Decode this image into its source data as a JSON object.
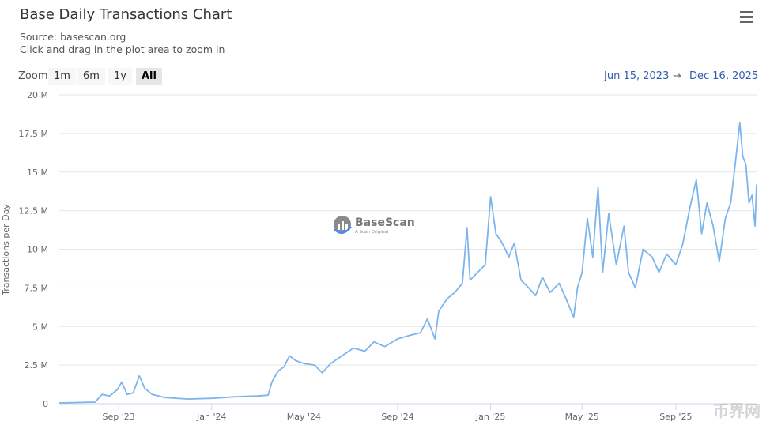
{
  "header": {
    "title": "Base Daily Transactions Chart",
    "source": "Source: basescan.org",
    "hint": "Click and drag in the plot area to zoom in"
  },
  "zoom": {
    "label": "Zoom",
    "buttons": [
      "1m",
      "6m",
      "1y",
      "All"
    ],
    "active": "All"
  },
  "range": {
    "from": "Jun 15, 2023",
    "arrow": "→",
    "to": "Dec 16, 2025"
  },
  "watermark": {
    "logo": "BaseScan",
    "tagline": "A Scan Original",
    "corner": "币界网"
  },
  "colors": {
    "line": "#7cb5ec",
    "grid": "#e6e6e6"
  },
  "chart_data": {
    "type": "line",
    "title": "Base Daily Transactions Chart",
    "ylabel": "Transactions per Day",
    "ylim": [
      0,
      20
    ],
    "xlim": [
      "2023-06-15",
      "2025-12-16"
    ],
    "yticks": [
      {
        "v": 0,
        "label": "0"
      },
      {
        "v": 2.5,
        "label": "2.5 M"
      },
      {
        "v": 5,
        "label": "5 M"
      },
      {
        "v": 7.5,
        "label": "7.5 M"
      },
      {
        "v": 10,
        "label": "10 M"
      },
      {
        "v": 12.5,
        "label": "12.5 M"
      },
      {
        "v": 15,
        "label": "15 M"
      },
      {
        "v": 17.5,
        "label": "17.5 M"
      },
      {
        "v": 20,
        "label": "20 M"
      }
    ],
    "xticks": [
      {
        "d": "2023-09-01",
        "label": "Sep '23"
      },
      {
        "d": "2024-01-01",
        "label": "Jan '24"
      },
      {
        "d": "2024-05-01",
        "label": "May '24"
      },
      {
        "d": "2024-09-01",
        "label": "Sep '24"
      },
      {
        "d": "2025-01-01",
        "label": "Jan '25"
      },
      {
        "d": "2025-05-01",
        "label": "May '25"
      },
      {
        "d": "2025-09-01",
        "label": "Sep '25"
      }
    ],
    "series": [
      {
        "name": "Transactions per Day (M)",
        "points": [
          [
            "2023-06-15",
            0.05
          ],
          [
            "2023-08-01",
            0.1
          ],
          [
            "2023-08-10",
            0.6
          ],
          [
            "2023-08-20",
            0.5
          ],
          [
            "2023-08-30",
            0.9
          ],
          [
            "2023-09-05",
            1.4
          ],
          [
            "2023-09-12",
            0.6
          ],
          [
            "2023-09-20",
            0.7
          ],
          [
            "2023-09-28",
            1.8
          ],
          [
            "2023-10-05",
            1.0
          ],
          [
            "2023-10-15",
            0.6
          ],
          [
            "2023-11-01",
            0.4
          ],
          [
            "2023-12-01",
            0.3
          ],
          [
            "2024-01-01",
            0.35
          ],
          [
            "2024-02-01",
            0.45
          ],
          [
            "2024-03-01",
            0.5
          ],
          [
            "2024-03-15",
            0.55
          ],
          [
            "2024-03-20",
            1.4
          ],
          [
            "2024-03-28",
            2.1
          ],
          [
            "2024-04-05",
            2.4
          ],
          [
            "2024-04-12",
            3.1
          ],
          [
            "2024-04-20",
            2.8
          ],
          [
            "2024-05-01",
            2.6
          ],
          [
            "2024-05-15",
            2.5
          ],
          [
            "2024-05-25",
            2.0
          ],
          [
            "2024-06-05",
            2.6
          ],
          [
            "2024-06-20",
            3.1
          ],
          [
            "2024-07-05",
            3.6
          ],
          [
            "2024-07-20",
            3.4
          ],
          [
            "2024-08-01",
            4.0
          ],
          [
            "2024-08-15",
            3.7
          ],
          [
            "2024-09-01",
            4.2
          ],
          [
            "2024-09-15",
            4.4
          ],
          [
            "2024-10-01",
            4.6
          ],
          [
            "2024-10-10",
            5.5
          ],
          [
            "2024-10-20",
            4.2
          ],
          [
            "2024-10-25",
            6.0
          ],
          [
            "2024-11-05",
            6.8
          ],
          [
            "2024-11-15",
            7.2
          ],
          [
            "2024-11-25",
            7.8
          ],
          [
            "2024-12-01",
            11.4
          ],
          [
            "2024-12-05",
            8.0
          ],
          [
            "2024-12-15",
            8.5
          ],
          [
            "2024-12-25",
            9.0
          ],
          [
            "2025-01-01",
            13.4
          ],
          [
            "2025-01-08",
            11.0
          ],
          [
            "2025-01-15",
            10.5
          ],
          [
            "2025-01-25",
            9.5
          ],
          [
            "2025-02-01",
            10.4
          ],
          [
            "2025-02-10",
            8.0
          ],
          [
            "2025-02-20",
            7.5
          ],
          [
            "2025-03-01",
            7.0
          ],
          [
            "2025-03-10",
            8.2
          ],
          [
            "2025-03-20",
            7.2
          ],
          [
            "2025-04-01",
            7.8
          ],
          [
            "2025-04-10",
            6.8
          ],
          [
            "2025-04-20",
            5.6
          ],
          [
            "2025-04-25",
            7.5
          ],
          [
            "2025-05-01",
            8.5
          ],
          [
            "2025-05-08",
            12.0
          ],
          [
            "2025-05-15",
            9.5
          ],
          [
            "2025-05-22",
            14.0
          ],
          [
            "2025-05-28",
            8.5
          ],
          [
            "2025-06-05",
            12.3
          ],
          [
            "2025-06-15",
            9.0
          ],
          [
            "2025-06-25",
            11.5
          ],
          [
            "2025-07-01",
            8.5
          ],
          [
            "2025-07-10",
            7.5
          ],
          [
            "2025-07-20",
            10.0
          ],
          [
            "2025-08-01",
            9.5
          ],
          [
            "2025-08-10",
            8.5
          ],
          [
            "2025-08-20",
            9.7
          ],
          [
            "2025-09-01",
            9.0
          ],
          [
            "2025-09-10",
            10.3
          ],
          [
            "2025-09-20",
            12.8
          ],
          [
            "2025-09-28",
            14.5
          ],
          [
            "2025-10-05",
            11.0
          ],
          [
            "2025-10-12",
            13.0
          ],
          [
            "2025-10-20",
            11.5
          ],
          [
            "2025-10-28",
            9.2
          ],
          [
            "2025-11-05",
            12.0
          ],
          [
            "2025-11-12",
            13.0
          ],
          [
            "2025-11-18",
            15.5
          ],
          [
            "2025-11-24",
            18.2
          ],
          [
            "2025-11-28",
            16.0
          ],
          [
            "2025-12-02",
            15.5
          ],
          [
            "2025-12-06",
            13.0
          ],
          [
            "2025-12-10",
            13.5
          ],
          [
            "2025-12-14",
            11.5
          ],
          [
            "2025-12-16",
            14.2
          ]
        ]
      }
    ]
  }
}
